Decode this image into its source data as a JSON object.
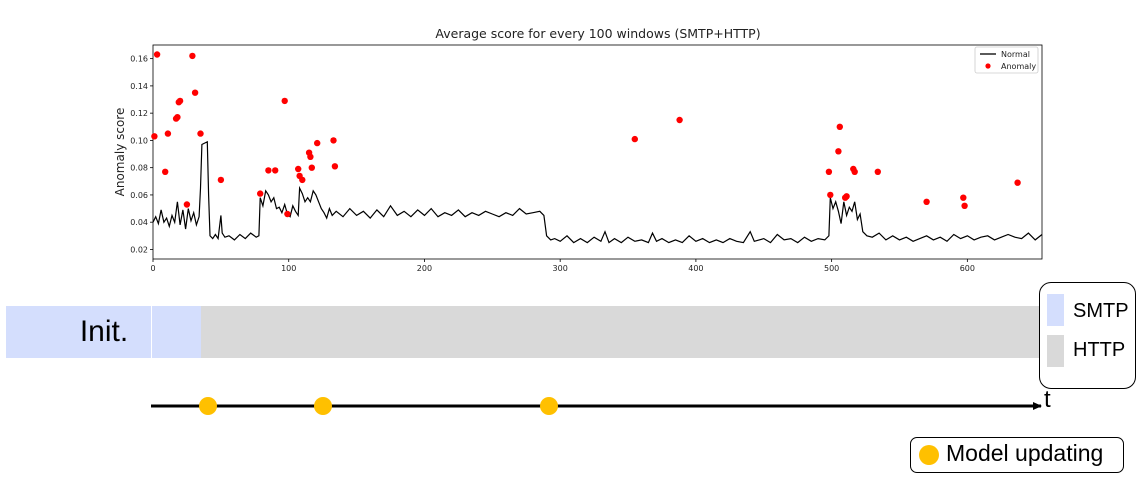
{
  "chart_data": {
    "type": "line",
    "title": "Average score for every 100 windows (SMTP+HTTP)",
    "xlabel": "",
    "ylabel": "Anomaly score",
    "xlim": [
      0,
      655
    ],
    "ylim": [
      0.013,
      0.17
    ],
    "x_ticks": [
      0,
      100,
      200,
      300,
      400,
      500,
      600
    ],
    "y_ticks": [
      0.02,
      0.04,
      0.06,
      0.08,
      0.1,
      0.12,
      0.14,
      0.16
    ],
    "y_tick_labels": [
      "0.02",
      "0.04",
      "0.06",
      "0.08",
      "0.10",
      "0.12",
      "0.14",
      "0.16"
    ],
    "grid": false,
    "legend": {
      "position": "top-right",
      "entries": [
        "Normal",
        "Anomaly"
      ]
    },
    "series": [
      {
        "name": "Normal",
        "type": "line",
        "color": "#000000",
        "points": [
          [
            0,
            0.04
          ],
          [
            2,
            0.044
          ],
          [
            4,
            0.039
          ],
          [
            6,
            0.049
          ],
          [
            8,
            0.04
          ],
          [
            10,
            0.043
          ],
          [
            12,
            0.037
          ],
          [
            14,
            0.045
          ],
          [
            16,
            0.04
          ],
          [
            18,
            0.055
          ],
          [
            20,
            0.038
          ],
          [
            22,
            0.049
          ],
          [
            24,
            0.035
          ],
          [
            26,
            0.05
          ],
          [
            28,
            0.041
          ],
          [
            30,
            0.047
          ],
          [
            32,
            0.038
          ],
          [
            34,
            0.044
          ],
          [
            35,
            0.065
          ],
          [
            36,
            0.097
          ],
          [
            38,
            0.098
          ],
          [
            40,
            0.099
          ],
          [
            41,
            0.06
          ],
          [
            42,
            0.03
          ],
          [
            44,
            0.028
          ],
          [
            46,
            0.031
          ],
          [
            48,
            0.028
          ],
          [
            50,
            0.045
          ],
          [
            51,
            0.032
          ],
          [
            53,
            0.029
          ],
          [
            56,
            0.03
          ],
          [
            60,
            0.027
          ],
          [
            64,
            0.031
          ],
          [
            68,
            0.028
          ],
          [
            72,
            0.032
          ],
          [
            76,
            0.029
          ],
          [
            78,
            0.03
          ],
          [
            79,
            0.058
          ],
          [
            81,
            0.052
          ],
          [
            83,
            0.063
          ],
          [
            85,
            0.06
          ],
          [
            87,
            0.055
          ],
          [
            89,
            0.058
          ],
          [
            91,
            0.05
          ],
          [
            93,
            0.051
          ],
          [
            95,
            0.047
          ],
          [
            97,
            0.053
          ],
          [
            99,
            0.046
          ],
          [
            101,
            0.044
          ],
          [
            103,
            0.052
          ],
          [
            105,
            0.048
          ],
          [
            107,
            0.045
          ],
          [
            108,
            0.065
          ],
          [
            110,
            0.061
          ],
          [
            112,
            0.055
          ],
          [
            114,
            0.058
          ],
          [
            116,
            0.055
          ],
          [
            118,
            0.063
          ],
          [
            120,
            0.06
          ],
          [
            122,
            0.055
          ],
          [
            124,
            0.05
          ],
          [
            126,
            0.047
          ],
          [
            128,
            0.043
          ],
          [
            130,
            0.05
          ],
          [
            132,
            0.045
          ],
          [
            135,
            0.048
          ],
          [
            140,
            0.044
          ],
          [
            145,
            0.05
          ],
          [
            150,
            0.045
          ],
          [
            155,
            0.048
          ],
          [
            160,
            0.043
          ],
          [
            165,
            0.049
          ],
          [
            170,
            0.044
          ],
          [
            175,
            0.052
          ],
          [
            180,
            0.045
          ],
          [
            185,
            0.048
          ],
          [
            190,
            0.044
          ],
          [
            195,
            0.049
          ],
          [
            200,
            0.045
          ],
          [
            205,
            0.05
          ],
          [
            210,
            0.044
          ],
          [
            215,
            0.047
          ],
          [
            220,
            0.045
          ],
          [
            225,
            0.049
          ],
          [
            230,
            0.044
          ],
          [
            235,
            0.047
          ],
          [
            240,
            0.045
          ],
          [
            245,
            0.048
          ],
          [
            250,
            0.046
          ],
          [
            255,
            0.044
          ],
          [
            260,
            0.047
          ],
          [
            265,
            0.045
          ],
          [
            270,
            0.05
          ],
          [
            275,
            0.046
          ],
          [
            280,
            0.047
          ],
          [
            285,
            0.048
          ],
          [
            288,
            0.045
          ],
          [
            290,
            0.03
          ],
          [
            293,
            0.027
          ],
          [
            296,
            0.028
          ],
          [
            300,
            0.026
          ],
          [
            305,
            0.03
          ],
          [
            310,
            0.025
          ],
          [
            315,
            0.028
          ],
          [
            320,
            0.025
          ],
          [
            325,
            0.029
          ],
          [
            330,
            0.026
          ],
          [
            333,
            0.033
          ],
          [
            336,
            0.025
          ],
          [
            340,
            0.028
          ],
          [
            345,
            0.025
          ],
          [
            350,
            0.029
          ],
          [
            355,
            0.026
          ],
          [
            360,
            0.027
          ],
          [
            365,
            0.025
          ],
          [
            368,
            0.032
          ],
          [
            371,
            0.026
          ],
          [
            375,
            0.028
          ],
          [
            380,
            0.025
          ],
          [
            385,
            0.027
          ],
          [
            390,
            0.025
          ],
          [
            395,
            0.03
          ],
          [
            400,
            0.026
          ],
          [
            405,
            0.028
          ],
          [
            410,
            0.025
          ],
          [
            415,
            0.027
          ],
          [
            420,
            0.025
          ],
          [
            425,
            0.028
          ],
          [
            430,
            0.026
          ],
          [
            435,
            0.025
          ],
          [
            440,
            0.033
          ],
          [
            443,
            0.026
          ],
          [
            450,
            0.028
          ],
          [
            455,
            0.025
          ],
          [
            460,
            0.031
          ],
          [
            465,
            0.027
          ],
          [
            470,
            0.028
          ],
          [
            475,
            0.025
          ],
          [
            480,
            0.029
          ],
          [
            485,
            0.026
          ],
          [
            490,
            0.028
          ],
          [
            495,
            0.027
          ],
          [
            498,
            0.03
          ],
          [
            499,
            0.058
          ],
          [
            501,
            0.05
          ],
          [
            503,
            0.055
          ],
          [
            505,
            0.048
          ],
          [
            507,
            0.039
          ],
          [
            509,
            0.055
          ],
          [
            511,
            0.045
          ],
          [
            513,
            0.051
          ],
          [
            515,
            0.048
          ],
          [
            517,
            0.055
          ],
          [
            519,
            0.042
          ],
          [
            521,
            0.046
          ],
          [
            523,
            0.033
          ],
          [
            526,
            0.03
          ],
          [
            530,
            0.029
          ],
          [
            535,
            0.032
          ],
          [
            540,
            0.027
          ],
          [
            545,
            0.03
          ],
          [
            550,
            0.027
          ],
          [
            555,
            0.029
          ],
          [
            560,
            0.026
          ],
          [
            565,
            0.028
          ],
          [
            570,
            0.03
          ],
          [
            575,
            0.027
          ],
          [
            580,
            0.029
          ],
          [
            585,
            0.026
          ],
          [
            590,
            0.031
          ],
          [
            595,
            0.028
          ],
          [
            600,
            0.03
          ],
          [
            605,
            0.027
          ],
          [
            610,
            0.029
          ],
          [
            615,
            0.03
          ],
          [
            620,
            0.027
          ],
          [
            625,
            0.029
          ],
          [
            630,
            0.031
          ],
          [
            635,
            0.029
          ],
          [
            640,
            0.028
          ],
          [
            645,
            0.032
          ],
          [
            650,
            0.027
          ],
          [
            655,
            0.031
          ]
        ]
      },
      {
        "name": "Anomaly",
        "type": "scatter",
        "color": "#ff0000",
        "points": [
          [
            1,
            0.103
          ],
          [
            3,
            0.163
          ],
          [
            9,
            0.077
          ],
          [
            11,
            0.105
          ],
          [
            17,
            0.116
          ],
          [
            18,
            0.117
          ],
          [
            19,
            0.128
          ],
          [
            20,
            0.129
          ],
          [
            25,
            0.053
          ],
          [
            29,
            0.162
          ],
          [
            31,
            0.135
          ],
          [
            35,
            0.105
          ],
          [
            50,
            0.071
          ],
          [
            79,
            0.061
          ],
          [
            85,
            0.078
          ],
          [
            90,
            0.078
          ],
          [
            97,
            0.129
          ],
          [
            99,
            0.046
          ],
          [
            107,
            0.079
          ],
          [
            108,
            0.074
          ],
          [
            110,
            0.071
          ],
          [
            115,
            0.091
          ],
          [
            116,
            0.088
          ],
          [
            117,
            0.08
          ],
          [
            121,
            0.098
          ],
          [
            133,
            0.1
          ],
          [
            134,
            0.081
          ],
          [
            355,
            0.101
          ],
          [
            388,
            0.115
          ],
          [
            498,
            0.077
          ],
          [
            499,
            0.06
          ],
          [
            505,
            0.092
          ],
          [
            506,
            0.11
          ],
          [
            510,
            0.058
          ],
          [
            511,
            0.059
          ],
          [
            516,
            0.079
          ],
          [
            517,
            0.077
          ],
          [
            534,
            0.077
          ],
          [
            570,
            0.055
          ],
          [
            597,
            0.058
          ],
          [
            598,
            0.052
          ],
          [
            637,
            0.069
          ]
        ]
      }
    ]
  },
  "lower_bar": {
    "init_label": "Init.",
    "legend": [
      {
        "label": "SMTP",
        "color": "#d4defd"
      },
      {
        "label": "HTTP",
        "color": "#d9d9d9"
      }
    ]
  },
  "timeline": {
    "axis_label": "t",
    "update_marker_color": "#ffc000",
    "update_legend_label": "Model updating"
  }
}
